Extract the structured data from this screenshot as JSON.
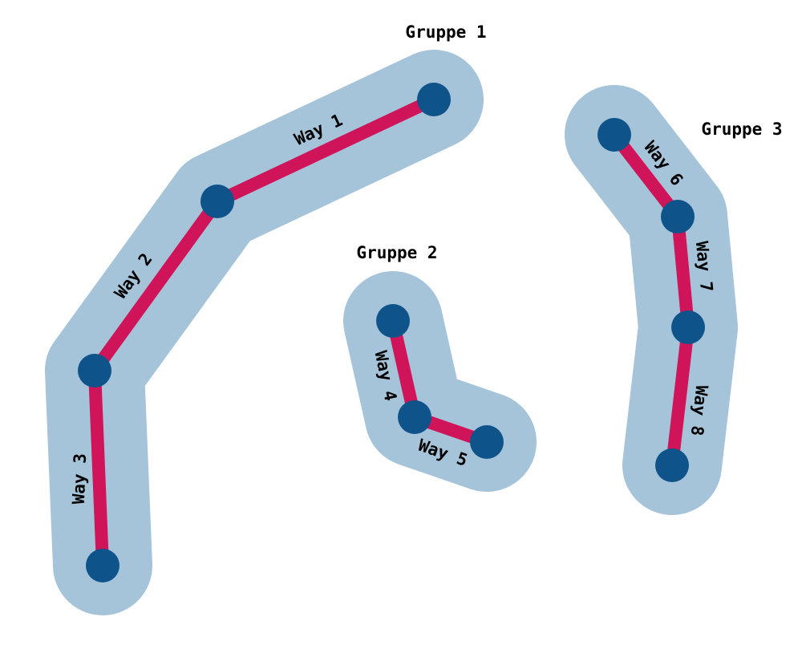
{
  "colors": {
    "halo": "#a5c3d9",
    "way": "#d0145a",
    "node": "#0e538a"
  },
  "groups": [
    {
      "title": "Gruppe 1",
      "ways": [
        {
          "label": "Way 1"
        },
        {
          "label": "Way 2"
        },
        {
          "label": "Way 3"
        }
      ]
    },
    {
      "title": "Gruppe 2",
      "ways": [
        {
          "label": "Way 4"
        },
        {
          "label": "Way 5"
        }
      ]
    },
    {
      "title": "Gruppe 3",
      "ways": [
        {
          "label": "Way 6"
        },
        {
          "label": "Way 7"
        },
        {
          "label": "Way 8"
        }
      ]
    }
  ]
}
